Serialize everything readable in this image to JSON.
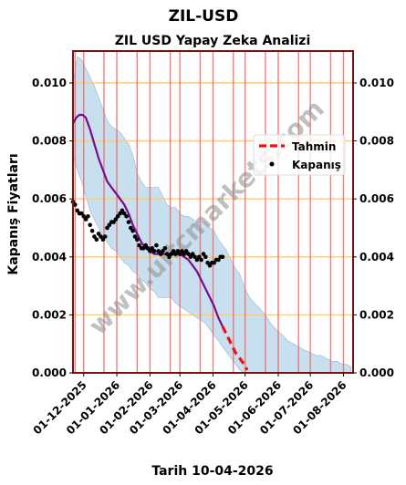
{
  "chart_data": {
    "type": "line",
    "title": "ZIL-USD",
    "subtitle": "ZIL USD Yapay Zeka Analizi",
    "xlabel": "Tarih 10-04-2026",
    "ylabel": "Kapanış Fiyatları",
    "watermark": "www.ultcmarkets.com",
    "x_range": [
      "2025-11-21",
      "2026-08-10"
    ],
    "ylim": [
      0,
      0.0111
    ],
    "y_ticks": [
      {
        "value": 0,
        "label": "0.000"
      },
      {
        "value": 0.002,
        "label": "0.002"
      },
      {
        "value": 0.004,
        "label": "0.004"
      },
      {
        "value": 0.006,
        "label": "0.006"
      },
      {
        "value": 0.008,
        "label": "0.008"
      },
      {
        "value": 0.01,
        "label": "0.010"
      }
    ],
    "x_ticks": [
      {
        "date": "2025-12-01",
        "label": "01-12-2025"
      },
      {
        "date": "2026-01-01",
        "label": "01-01-2026"
      },
      {
        "date": "2026-02-01",
        "label": "01-02-2026"
      },
      {
        "date": "2026-03-01",
        "label": "01-03-2026"
      },
      {
        "date": "2026-04-01",
        "label": "01-04-2026"
      },
      {
        "date": "2026-05-01",
        "label": "01-05-2026"
      },
      {
        "date": "2026-06-01",
        "label": "01-06-2026"
      },
      {
        "date": "2026-07-01",
        "label": "01-07-2026"
      },
      {
        "date": "2026-08-01",
        "label": "01-08-2026"
      }
    ],
    "vertical_lines": [
      "2025-11-23",
      "2025-12-01",
      "2025-12-20",
      "2026-01-01",
      "2026-01-20",
      "2026-02-01",
      "2026-02-20",
      "2026-03-01",
      "2026-03-20",
      "2026-04-01",
      "2026-04-20",
      "2026-05-01",
      "2026-05-20",
      "2026-06-01",
      "2026-06-20",
      "2026-07-01",
      "2026-07-20",
      "2026-08-01"
    ],
    "grid": true,
    "legend": {
      "position": "right",
      "entries": [
        {
          "label": "Tahmin",
          "style": "dashed-line",
          "color": "#ee1111"
        },
        {
          "label": "Kapanış",
          "style": "dot",
          "color": "#000000"
        }
      ]
    },
    "colors": {
      "band": "#b4d4e9",
      "trend": "#7a0a8c",
      "forecast": "#ee1111",
      "close": "#000000",
      "hgrid": "#ffcc66",
      "vline": "#ee6666",
      "frame": "#7a1010"
    },
    "band": {
      "x": [
        "2025-11-21",
        "2025-11-25",
        "2025-11-29",
        "2025-12-03",
        "2025-12-07",
        "2025-12-11",
        "2025-12-15",
        "2025-12-19",
        "2025-12-23",
        "2025-12-27",
        "2025-12-31",
        "2026-01-04",
        "2026-01-08",
        "2026-01-12",
        "2026-01-16",
        "2026-01-20",
        "2026-01-24",
        "2026-01-28",
        "2026-02-01",
        "2026-02-05",
        "2026-02-09",
        "2026-02-13",
        "2026-02-17",
        "2026-02-21",
        "2026-02-25",
        "2026-03-01",
        "2026-03-05",
        "2026-03-09",
        "2026-03-13",
        "2026-03-17",
        "2026-03-21",
        "2026-03-25",
        "2026-03-29",
        "2026-04-02",
        "2026-04-06",
        "2026-04-10",
        "2026-04-14",
        "2026-04-18",
        "2026-04-22",
        "2026-04-26",
        "2026-04-30",
        "2026-05-05",
        "2026-05-10",
        "2026-05-15",
        "2026-05-20",
        "2026-05-25",
        "2026-05-30",
        "2026-06-05",
        "2026-06-10",
        "2026-06-15",
        "2026-06-20",
        "2026-06-25",
        "2026-07-01",
        "2026-07-06",
        "2026-07-11",
        "2026-07-16",
        "2026-07-21",
        "2026-07-26",
        "2026-07-31",
        "2026-08-04",
        "2026-08-08"
      ],
      "upper": [
        0.01,
        0.0109,
        0.0108,
        0.0105,
        0.0102,
        0.0099,
        0.0095,
        0.0091,
        0.0087,
        0.0085,
        0.0084,
        0.0083,
        0.0081,
        0.0079,
        0.0075,
        0.0069,
        0.0066,
        0.0064,
        0.0064,
        0.0064,
        0.0064,
        0.0061,
        0.0058,
        0.0057,
        0.0057,
        0.0055,
        0.0054,
        0.0054,
        0.0053,
        0.0052,
        0.0052,
        0.0052,
        0.005,
        0.0049,
        0.0046,
        0.0044,
        0.0042,
        0.0039,
        0.0036,
        0.0034,
        0.003,
        0.0026,
        0.0024,
        0.0022,
        0.002,
        0.0017,
        0.0015,
        0.0013,
        0.0011,
        0.001,
        0.0009,
        0.0008,
        0.0007,
        0.0006,
        0.0006,
        0.0005,
        0.0004,
        0.0004,
        0.0003,
        0.0003,
        0.0002
      ],
      "lower": [
        0.0075,
        0.007,
        0.0066,
        0.0061,
        0.0056,
        0.0053,
        0.005,
        0.0047,
        0.0045,
        0.0043,
        0.0042,
        0.004,
        0.0038,
        0.0037,
        0.0035,
        0.0034,
        0.0032,
        0.0031,
        0.0029,
        0.0028,
        0.0026,
        0.0026,
        0.0026,
        0.0026,
        0.0024,
        0.0023,
        0.0022,
        0.0021,
        0.002,
        0.0019,
        0.0018,
        0.0017,
        0.0015,
        0.0013,
        0.0011,
        0.0009,
        0.0007,
        0.0005,
        0.0003,
        0.0001,
        0.0,
        0.0,
        0.0,
        0.0,
        0.0,
        0.0,
        0.0,
        0.0,
        0.0,
        0.0,
        0.0,
        0.0,
        0.0,
        0.0,
        0.0,
        0.0,
        0.0,
        0.0,
        0.0,
        0.0,
        0.0
      ]
    },
    "series": [
      {
        "name": "Trend",
        "x": [
          "2025-11-21",
          "2025-11-24",
          "2025-11-27",
          "2025-11-30",
          "2025-12-03",
          "2025-12-07",
          "2025-12-11",
          "2025-12-15",
          "2025-12-19",
          "2025-12-23",
          "2025-12-27",
          "2025-12-31",
          "2026-01-04",
          "2026-01-08",
          "2026-01-12",
          "2026-01-16",
          "2026-01-20",
          "2026-01-24",
          "2026-01-28",
          "2026-02-01",
          "2026-02-05",
          "2026-02-09",
          "2026-02-13",
          "2026-02-17",
          "2026-02-21",
          "2026-02-25",
          "2026-03-01",
          "2026-03-05",
          "2026-03-09",
          "2026-03-13",
          "2026-03-17",
          "2026-03-21",
          "2026-03-25",
          "2026-03-29",
          "2026-04-02",
          "2026-04-06",
          "2026-04-10"
        ],
        "values": [
          0.0086,
          0.0088,
          0.0089,
          0.0089,
          0.0088,
          0.0084,
          0.0079,
          0.0074,
          0.007,
          0.0066,
          0.0064,
          0.0062,
          0.006,
          0.0058,
          0.0055,
          0.0051,
          0.0048,
          0.0045,
          0.0043,
          0.0042,
          0.0041,
          0.0041,
          0.0041,
          0.0041,
          0.0041,
          0.0041,
          0.0041,
          0.004,
          0.0039,
          0.0037,
          0.0035,
          0.0032,
          0.0029,
          0.0026,
          0.0023,
          0.0019,
          0.0016
        ]
      },
      {
        "name": "Tahmin",
        "x": [
          "2026-04-10",
          "2026-04-14",
          "2026-04-18",
          "2026-04-22",
          "2026-04-26",
          "2026-04-30",
          "2026-05-03"
        ],
        "values": [
          0.0016,
          0.0013,
          0.001,
          0.0007,
          0.0005,
          0.0003,
          0.0001
        ]
      },
      {
        "name": "Kapanış",
        "x": [
          "2025-11-21",
          "2025-11-23",
          "2025-11-25",
          "2025-11-27",
          "2025-11-29",
          "2025-12-01",
          "2025-12-03",
          "2025-12-05",
          "2025-12-07",
          "2025-12-09",
          "2025-12-11",
          "2025-12-13",
          "2025-12-15",
          "2025-12-17",
          "2025-12-19",
          "2025-12-21",
          "2025-12-23",
          "2025-12-25",
          "2025-12-27",
          "2025-12-29",
          "2025-12-31",
          "2026-01-02",
          "2026-01-04",
          "2026-01-06",
          "2026-01-08",
          "2026-01-10",
          "2026-01-12",
          "2026-01-14",
          "2026-01-16",
          "2026-01-18",
          "2026-01-20",
          "2026-01-22",
          "2026-01-24",
          "2026-01-26",
          "2026-01-28",
          "2026-01-30",
          "2026-02-01",
          "2026-02-03",
          "2026-02-05",
          "2026-02-07",
          "2026-02-09",
          "2026-02-11",
          "2026-02-13",
          "2026-02-15",
          "2026-02-17",
          "2026-02-19",
          "2026-02-21",
          "2026-02-23",
          "2026-02-25",
          "2026-02-27",
          "2026-03-01",
          "2026-03-03",
          "2026-03-05",
          "2026-03-07",
          "2026-03-09",
          "2026-03-11",
          "2026-03-13",
          "2026-03-15",
          "2026-03-17",
          "2026-03-19",
          "2026-03-21",
          "2026-03-23",
          "2026-03-25",
          "2026-03-27",
          "2026-03-29",
          "2026-03-31",
          "2026-04-02",
          "2026-04-04",
          "2026-04-06",
          "2026-04-08",
          "2026-04-10"
        ],
        "values": [
          0.0059,
          0.0058,
          0.0056,
          0.0055,
          0.0055,
          0.0054,
          0.0053,
          0.0054,
          0.0051,
          0.0049,
          0.0047,
          0.0046,
          0.0048,
          0.0047,
          0.0046,
          0.0047,
          0.005,
          0.0051,
          0.0052,
          0.0052,
          0.0053,
          0.0054,
          0.0055,
          0.0056,
          0.0055,
          0.0054,
          0.0052,
          0.005,
          0.0049,
          0.0047,
          0.0046,
          0.0044,
          0.0043,
          0.0043,
          0.0044,
          0.0043,
          0.0042,
          0.0043,
          0.0042,
          0.0044,
          0.0042,
          0.0041,
          0.0042,
          0.0043,
          0.0041,
          0.004,
          0.0041,
          0.0042,
          0.0041,
          0.0042,
          0.0041,
          0.0042,
          0.0041,
          0.0042,
          0.0041,
          0.004,
          0.0041,
          0.004,
          0.0039,
          0.004,
          0.0039,
          0.0041,
          0.004,
          0.0038,
          0.0037,
          0.0038,
          0.0038,
          0.0039,
          0.0039,
          0.004,
          0.004
        ]
      }
    ]
  }
}
